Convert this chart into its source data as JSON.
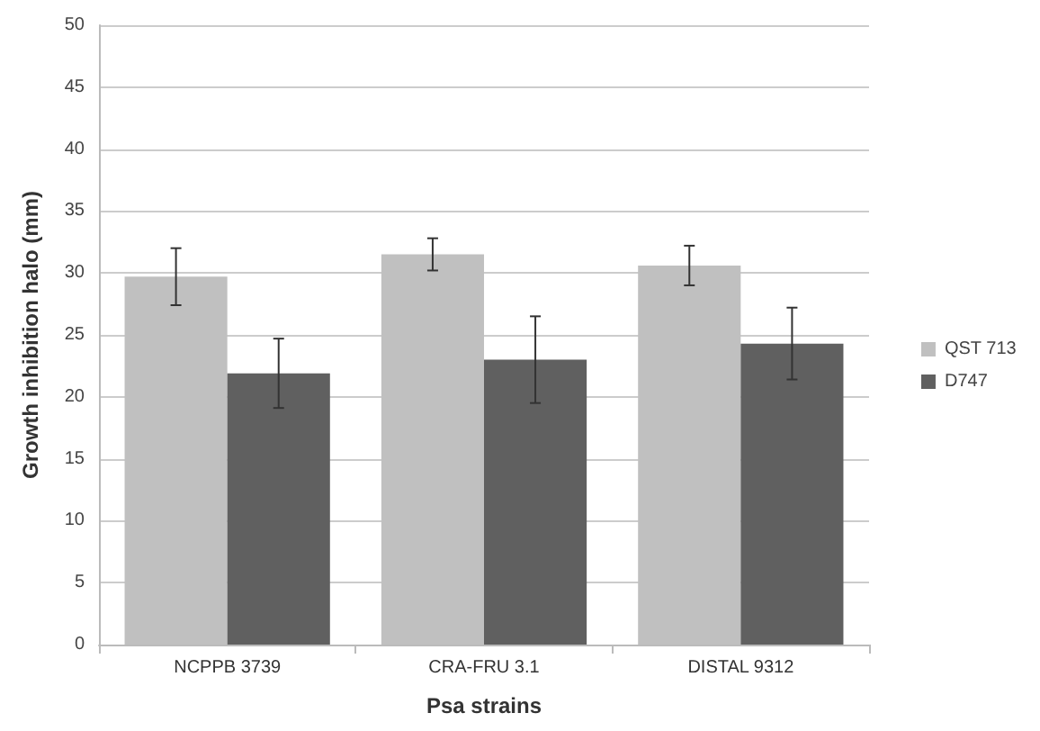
{
  "chart_data": {
    "type": "bar",
    "xlabel": "Psa strains",
    "ylabel": "Growth inhibition halo (mm)",
    "categories": [
      "NCPPB 3739",
      "CRA-FRU 3.1",
      "DISTAL 9312"
    ],
    "series": [
      {
        "name": "QST 713",
        "color": "#c0c0c0",
        "values": [
          29.7,
          31.5,
          30.6
        ],
        "errors": [
          2.3,
          1.3,
          1.6
        ]
      },
      {
        "name": "D747",
        "color": "#606060",
        "values": [
          21.9,
          23.0,
          24.3
        ],
        "errors": [
          2.8,
          3.5,
          2.9
        ]
      }
    ],
    "ylim": [
      0,
      50
    ],
    "yticks": [
      0,
      5,
      10,
      15,
      20,
      25,
      30,
      35,
      40,
      45,
      50
    ],
    "grid": "y",
    "legend": "right"
  }
}
